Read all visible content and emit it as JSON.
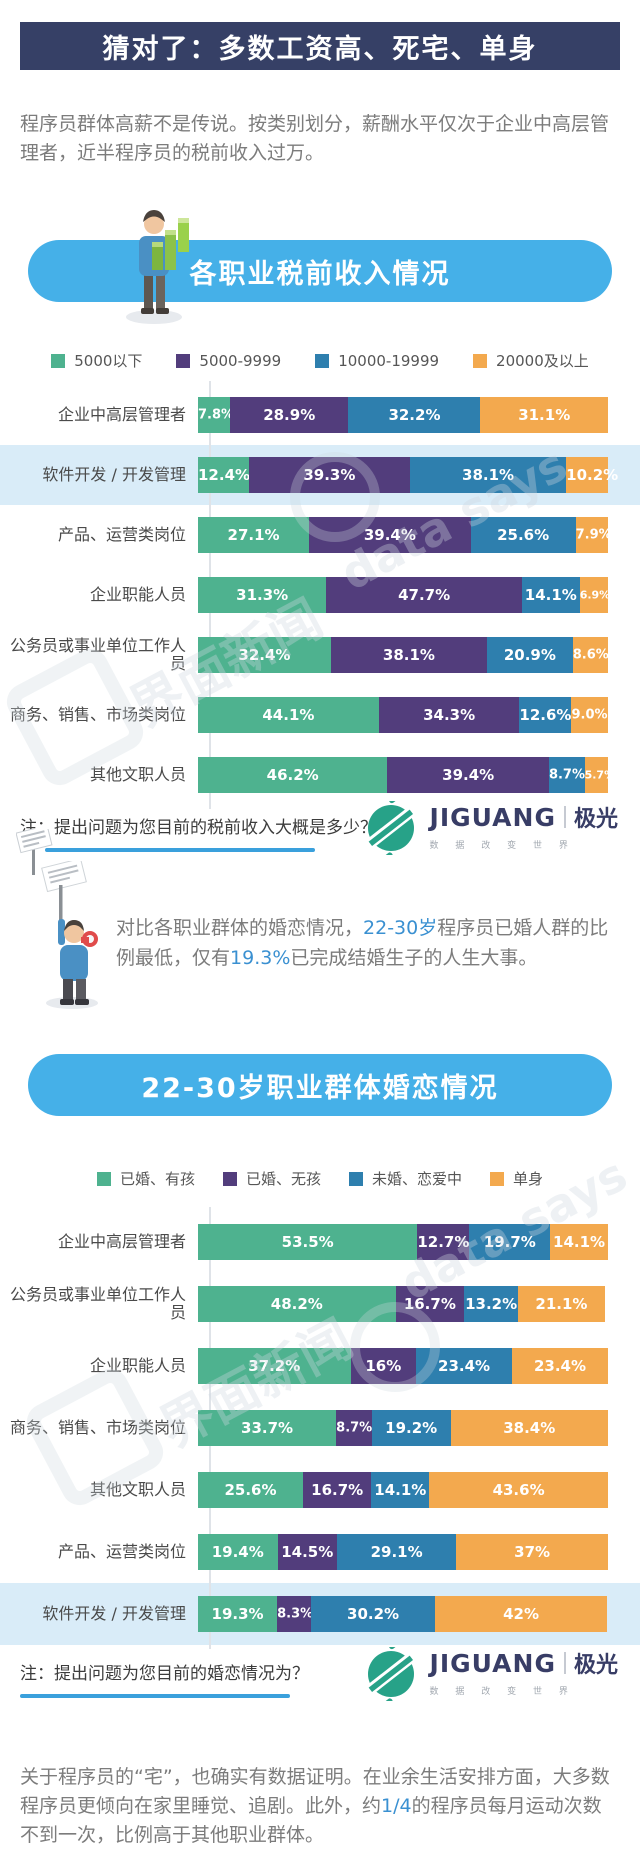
{
  "page": {
    "title": "猜对了：多数工资高、死宅、单身",
    "intro": "程序员群体高薪不是传说。按类别划分，薪酬水平仅次于企业中高层管理者，近半程序员的税前收入过万。",
    "promo_segments": [
      {
        "t": "对比各职业群体的婚恋情况，",
        "hl": false
      },
      {
        "t": "22-30岁",
        "hl": true
      },
      {
        "t": "程序员已婚人群的比例最低，仅有",
        "hl": false
      },
      {
        "t": "19.3%",
        "hl": true
      },
      {
        "t": "已完成结婚生子的人生大事。",
        "hl": false
      }
    ],
    "final_segments": [
      {
        "t": "关于程序员的“宅”，也确实有数据证明。在业余生活安排方面，大多数程序员更倾向在家里睡觉、追剧。此外，约",
        "hl": false
      },
      {
        "t": "1/4",
        "hl": true
      },
      {
        "t": "的程序员每月运动次数不到一次，比例高于其他职业群体。",
        "hl": false
      }
    ]
  },
  "brand": {
    "name": "JIGUANG",
    "cn": "极光",
    "slogan": "数 据 改 变 世 界"
  },
  "watermark": {
    "press": "界面新闻",
    "brand": "data says"
  },
  "colors": {
    "navy": "#364066",
    "pill_blue": "#45b0e8",
    "green": "#4eb28f",
    "purple": "#523d7c",
    "blue": "#2e7fae",
    "orange": "#f3a94e",
    "highlight_row": "#d9ecf8",
    "accent_text": "#3a90d1",
    "divider_blue": "#3aa0dc",
    "logo_green": "#27a288"
  },
  "chart_data": [
    {
      "type": "bar",
      "orientation": "horizontal-stacked",
      "title": "各职业税前收入情况",
      "note": "注：提出问题为您目前的税前收入大概是多少？",
      "xlim": [
        0,
        100
      ],
      "unit": "%",
      "legend_position": "top",
      "highlight_index": 1,
      "categories": [
        "企业中高层管理者",
        "软件开发 / 开发管理",
        "产品、运营类岗位",
        "企业职能人员",
        "公务员或事业单位工作人员",
        "商务、销售、市场类岗位",
        "其他文职人员"
      ],
      "series": [
        {
          "name": "5000以下",
          "color": "#4eb28f",
          "values": [
            7.8,
            12.4,
            27.1,
            31.3,
            32.4,
            44.1,
            46.2
          ],
          "labels": [
            "7.8%",
            "12.4%",
            "27.1%",
            "31.3%",
            "32.4%",
            "44.1%",
            "46.2%"
          ]
        },
        {
          "name": "5000-9999",
          "color": "#523d7c",
          "values": [
            28.9,
            39.3,
            39.4,
            47.7,
            38.1,
            34.3,
            39.4
          ],
          "labels": [
            "28.9%",
            "39.3%",
            "39.4%",
            "47.7%",
            "38.1%",
            "34.3%",
            "39.4%"
          ]
        },
        {
          "name": "10000-19999",
          "color": "#2e7fae",
          "values": [
            32.2,
            38.1,
            25.6,
            14.1,
            20.9,
            12.6,
            8.7
          ],
          "labels": [
            "32.2%",
            "38.1%",
            "25.6%",
            "14.1%",
            "20.9%",
            "12.6%",
            "8.7%"
          ]
        },
        {
          "name": "20000及以上",
          "color": "#f3a94e",
          "values": [
            31.1,
            10.2,
            7.9,
            6.9,
            8.6,
            9.0,
            5.7
          ],
          "labels": [
            "31.1%",
            "10.2%",
            "7.9%",
            "6.9%",
            "8.6%",
            "9.0%",
            "5.7%"
          ]
        }
      ]
    },
    {
      "type": "bar",
      "orientation": "horizontal-stacked",
      "title": "22-30岁职业群体婚恋情况",
      "note": "注：提出问题为您目前的婚恋情况为？",
      "xlim": [
        0,
        100
      ],
      "unit": "%",
      "legend_position": "top",
      "highlight_index": 6,
      "categories": [
        "企业中高层管理者",
        "公务员或事业单位工作人员",
        "企业职能人员",
        "商务、销售、市场类岗位",
        "其他文职人员",
        "产品、运营类岗位",
        "软件开发 / 开发管理"
      ],
      "series": [
        {
          "name": "已婚、有孩",
          "color": "#4eb28f",
          "values": [
            53.5,
            48.2,
            37.2,
            33.7,
            25.6,
            19.4,
            19.3
          ],
          "labels": [
            "53.5%",
            "48.2%",
            "37.2%",
            "33.7%",
            "25.6%",
            "19.4%",
            "19.3%"
          ]
        },
        {
          "name": "已婚、无孩",
          "color": "#523d7c",
          "values": [
            12.7,
            16.7,
            16,
            8.7,
            16.7,
            14.5,
            8.3
          ],
          "labels": [
            "12.7%",
            "16.7%",
            "16%",
            "8.7%",
            "16.7%",
            "14.5%",
            "8.3%"
          ]
        },
        {
          "name": "未婚、恋爱中",
          "color": "#2e7fae",
          "values": [
            19.7,
            13.2,
            23.4,
            19.2,
            14.1,
            29.1,
            30.2
          ],
          "labels": [
            "19.7%",
            "13.2%",
            "23.4%",
            "19.2%",
            "14.1%",
            "29.1%",
            "30.2%"
          ]
        },
        {
          "name": "单身",
          "color": "#f3a94e",
          "values": [
            14.1,
            21.1,
            23.4,
            38.4,
            43.6,
            37,
            42
          ],
          "labels": [
            "14.1%",
            "21.1%",
            "23.4%",
            "38.4%",
            "43.6%",
            "37%",
            "42%"
          ]
        }
      ]
    }
  ]
}
